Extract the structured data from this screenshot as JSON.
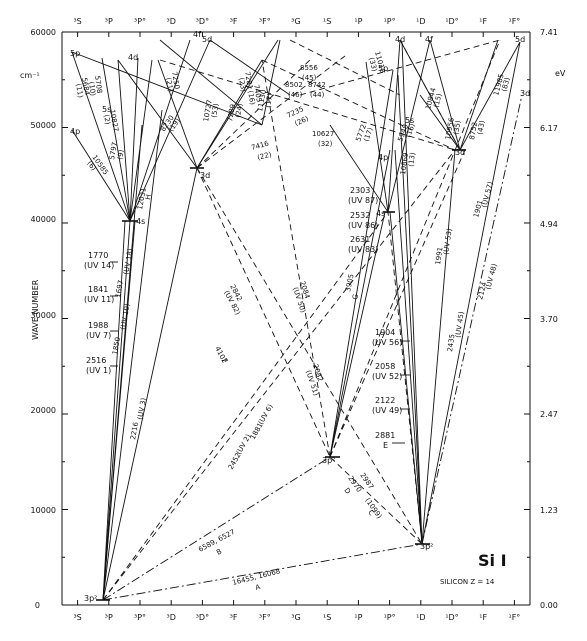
{
  "title": "Si I",
  "subtitle": "SILICON  Z = 14",
  "left_axis_label": "WAVE NUMBER",
  "left_unit": "cm⁻¹",
  "right_unit": "eV",
  "columns": [
    "³S",
    "³P",
    "³P°",
    "³D",
    "³D°",
    "³F",
    "³F°",
    "³G",
    "¹S",
    "¹P",
    "¹P°",
    "¹D",
    "¹D°",
    "¹F",
    "¹F°"
  ],
  "wave_ticks": [
    "60000",
    "50000",
    "40000",
    "30000",
    "20000",
    "10000",
    "0"
  ],
  "ev_ticks": [
    "7.41",
    "6.17",
    "4.94",
    "3.70",
    "2.47",
    "1.23",
    "0.00"
  ],
  "levels": [
    "3p²",
    "4s",
    "3d",
    "4p",
    "5s",
    "5p",
    "4d",
    "4f",
    "5d",
    "3p²",
    "3p²",
    "4s",
    "3d",
    "4p",
    "5p",
    "4d",
    "4f",
    "5s",
    "5d",
    "3d"
  ],
  "side_labels": [
    {
      "id": "uv14",
      "text": "1770",
      "sub": "(UV 14)"
    },
    {
      "id": "uv11",
      "text": "1841",
      "sub": "(UV 11)"
    },
    {
      "id": "uv7",
      "text": "1988",
      "sub": "(UV 7)"
    },
    {
      "id": "uv1",
      "text": "2516",
      "sub": "(UV 1)"
    },
    {
      "id": "uv87",
      "text": "2303",
      "sub": "(UV 87)"
    },
    {
      "id": "uv86",
      "text": "2532",
      "sub": "(UV 86)"
    },
    {
      "id": "uv83",
      "text": "2631",
      "sub": "(UV 83)"
    },
    {
      "id": "uv56",
      "text": "1904",
      "sub": "(UV 56)"
    },
    {
      "id": "uv52",
      "text": "2058",
      "sub": "(UV 52)"
    },
    {
      "id": "uv49",
      "text": "2122",
      "sub": "(UV 49)"
    },
    {
      "id": "e",
      "text": "2881",
      "sub": "E"
    }
  ],
  "transition_labels": [
    "5684",
    "(11)",
    "5708",
    "(10)",
    "5797",
    "(9)",
    "10585",
    "(6)",
    "10827",
    "(2)",
    "12031",
    "H",
    "1697",
    "(UV 18)",
    "1850",
    "(UV 10)",
    "2216",
    "(UV 3)",
    "2842",
    "(UV 82)",
    "4102",
    "F",
    "2084",
    "(UV 50)",
    "2082",
    "(UV 51)",
    "2452",
    "(UV 2)",
    "1881",
    "(UV 6)",
    "2970",
    "D",
    "2987",
    "(1099)",
    "C",
    "6589, 6527",
    "B",
    "16455, 16068",
    "A",
    "7250",
    "(21)",
    "7281",
    "(23)",
    "7289",
    "(24)",
    "7416",
    "(22)",
    "7235",
    "(26)",
    "7405",
    "(16)",
    "8230",
    "(19)",
    "8556",
    "(45)",
    "8502",
    "(46)",
    "8742",
    "(44)",
    "10627",
    "(32)",
    "10727",
    "(53)",
    "10869",
    "(13)",
    "5772",
    "(17)",
    "5948",
    "(16)",
    "3905",
    "G",
    "1991",
    "(UV 53)",
    "2435",
    "(UV 45)",
    "2124",
    "(UV 48)",
    "1901",
    "(UV 57)",
    "11018",
    "(33)",
    "10844",
    "(15)",
    "10956",
    "(35)",
    "11985",
    "(83)",
    "8752",
    "(43)",
    "11130",
    "(17)"
  ]
}
